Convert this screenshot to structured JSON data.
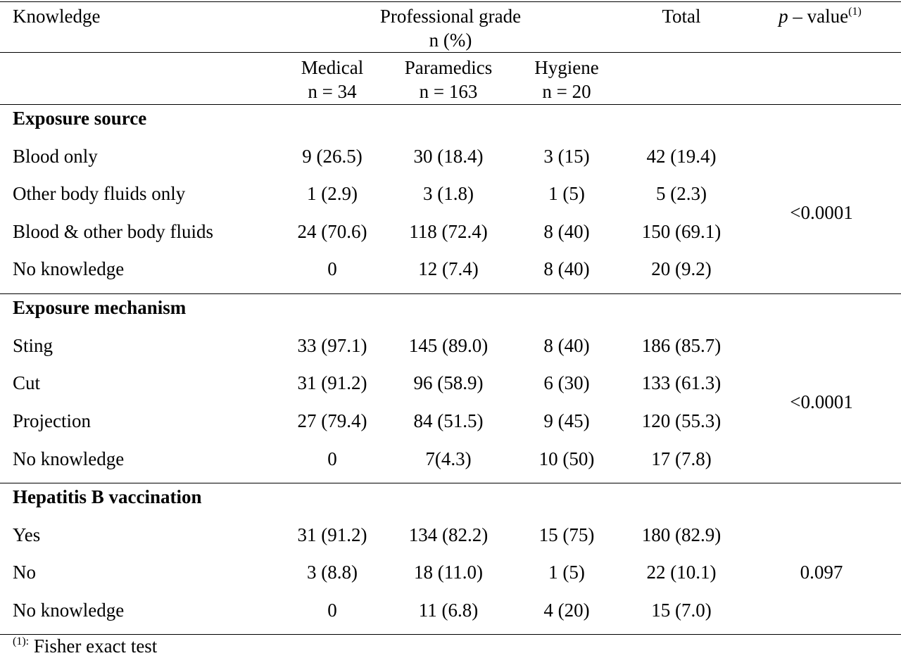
{
  "header": {
    "knowledge": "Knowledge",
    "professional_grade": "Professional grade",
    "n_percent": "n (%)",
    "total": "Total",
    "p_letter": "p",
    "p_rest": " – value",
    "p_sup": "(1)"
  },
  "columns": [
    {
      "name": "Medical",
      "n": "n = 34"
    },
    {
      "name": "Paramedics",
      "n": "n = 163"
    },
    {
      "name": "Hygiene",
      "n": "n = 20"
    }
  ],
  "sections": [
    {
      "title": "Exposure source",
      "p_value": "<0.0001",
      "rows": [
        {
          "label": "Blood only",
          "values": [
            "9 (26.5)",
            "30 (18.4)",
            "3 (15)",
            "42 (19.4)"
          ]
        },
        {
          "label": "Other body fluids only",
          "values": [
            "1 (2.9)",
            "3 (1.8)",
            "1 (5)",
            "5 (2.3)"
          ]
        },
        {
          "label": "Blood & other body fluids",
          "values": [
            "24 (70.6)",
            "118 (72.4)",
            "8 (40)",
            "150 (69.1)"
          ]
        },
        {
          "label": "No knowledge",
          "values": [
            "0",
            "12 (7.4)",
            "8 (40)",
            "20 (9.2)"
          ]
        }
      ]
    },
    {
      "title": "Exposure mechanism",
      "p_value": "<0.0001",
      "rows": [
        {
          "label": "Sting",
          "values": [
            "33 (97.1)",
            "145 (89.0)",
            "8 (40)",
            "186 (85.7)"
          ]
        },
        {
          "label": "Cut",
          "values": [
            "31 (91.2)",
            "96 (58.9)",
            "6 (30)",
            "133 (61.3)"
          ]
        },
        {
          "label": "Projection",
          "values": [
            "27 (79.4)",
            "84 (51.5)",
            "9 (45)",
            "120 (55.3)"
          ]
        },
        {
          "label": "No knowledge",
          "values": [
            "0",
            "7(4.3)",
            "10 (50)",
            "17 (7.8)"
          ]
        }
      ]
    },
    {
      "title": "Hepatitis B vaccination",
      "p_value": "0.097",
      "rows": [
        {
          "label": "Yes",
          "values": [
            "31 (91.2)",
            "134 (82.2)",
            "15 (75)",
            "180 (82.9)"
          ]
        },
        {
          "label": "No",
          "values": [
            "3 (8.8)",
            "18 (11.0)",
            "1 (5)",
            "22 (10.1)"
          ]
        },
        {
          "label": "No knowledge",
          "values": [
            "0",
            "11 (6.8)",
            "4 (20)",
            "15 (7.0)"
          ]
        }
      ]
    }
  ],
  "footnote": {
    "sup": "(1):",
    "text": " Fisher exact test"
  }
}
